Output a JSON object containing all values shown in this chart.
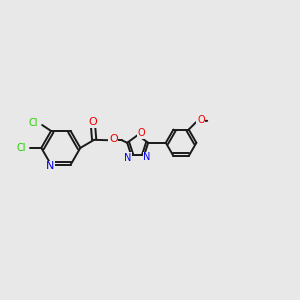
{
  "background_color": "#e8e8e8",
  "bond_color": "#1a1a1a",
  "N_color": "#0000ee",
  "O_color": "#ee0000",
  "Cl_color": "#22cc00",
  "figsize": [
    3.0,
    3.0
  ],
  "dpi": 100,
  "lw": 1.4,
  "fs": 7.0,
  "xlim": [
    0,
    14
  ],
  "ylim": [
    0,
    10
  ]
}
